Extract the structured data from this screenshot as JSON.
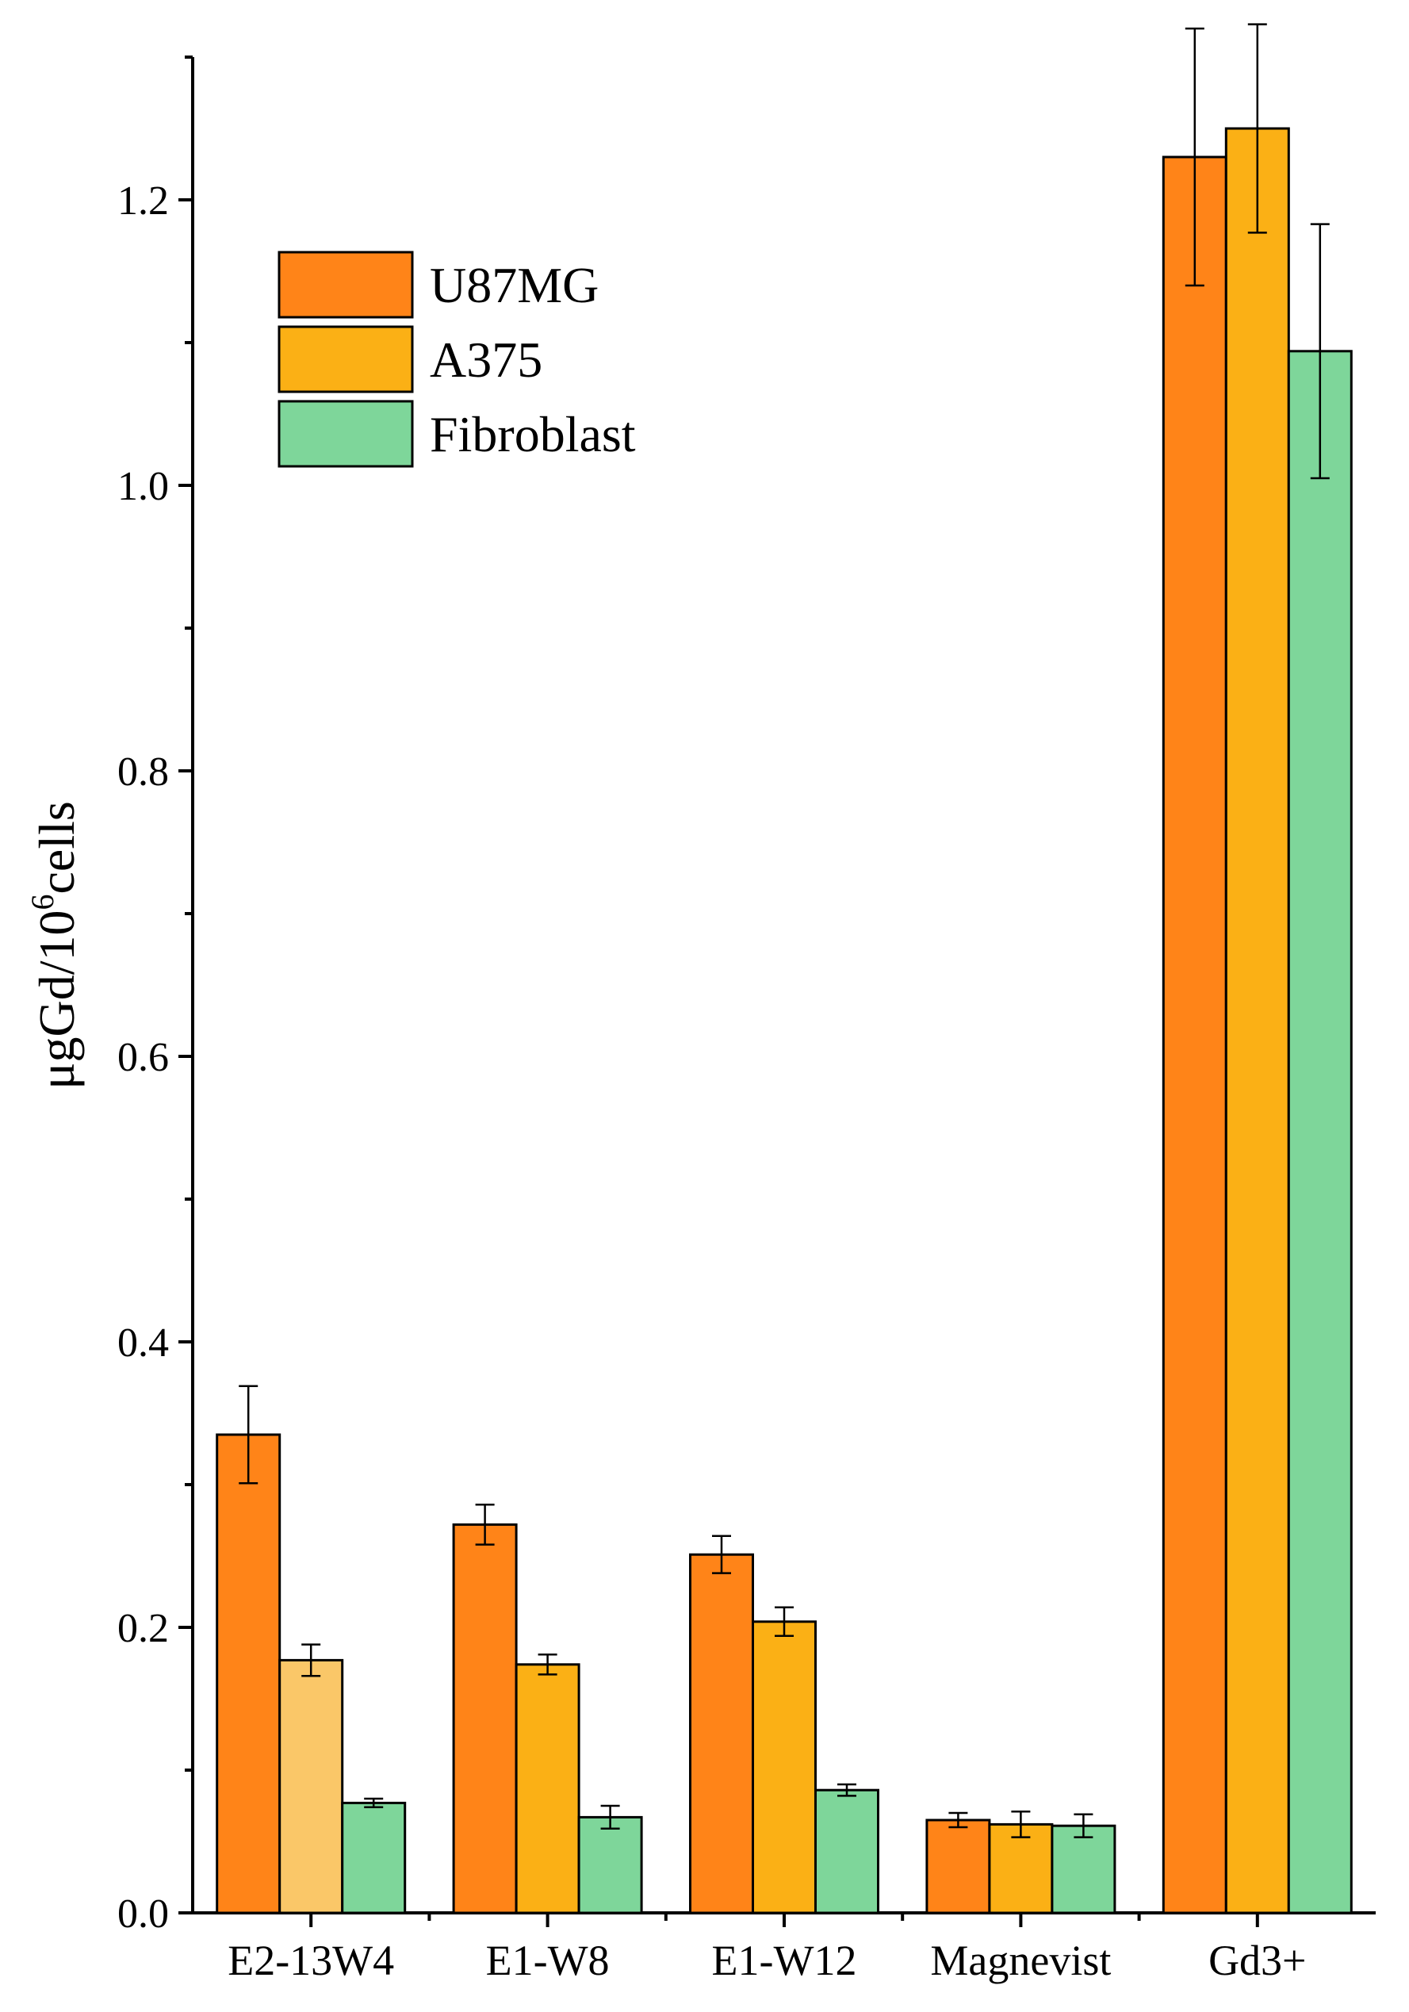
{
  "chart_data": {
    "type": "bar",
    "title": "",
    "xlabel": "",
    "ylabel": "μgGd/10⁶cells",
    "ylabel_base": "μgGd/10",
    "ylabel_sup": "6",
    "ylabel_tail": "cells",
    "ylim": [
      0,
      1.3
    ],
    "yticks": [
      "0.0",
      "0.2",
      "0.4",
      "0.6",
      "0.8",
      "1.0",
      "1.2"
    ],
    "ytick_values": [
      0.0,
      0.2,
      0.4,
      0.6,
      0.8,
      1.0,
      1.2
    ],
    "categories": [
      "E2-13W4",
      "E1-W8",
      "E1-W12",
      "Magnevist",
      "Gd3+"
    ],
    "legend_position": "top-left",
    "series": [
      {
        "name": "U87MG",
        "color": "#FF8418",
        "values": [
          0.335,
          0.272,
          0.251,
          0.065,
          1.23
        ],
        "errors": [
          0.034,
          0.014,
          0.013,
          0.005,
          0.09
        ]
      },
      {
        "name": "A375",
        "color": "#FBB015",
        "values": [
          0.177,
          0.174,
          0.204,
          0.062,
          1.25
        ],
        "errors": [
          0.011,
          0.007,
          0.01,
          0.009,
          0.073
        ]
      },
      {
        "name": "Fibroblast",
        "color": "#7ED69A",
        "values": [
          0.077,
          0.067,
          0.086,
          0.061,
          1.094
        ],
        "errors": [
          0.003,
          0.008,
          0.004,
          0.008,
          0.089
        ]
      }
    ],
    "highlight": {
      "series": 1,
      "category": 0,
      "color": "#FAC768"
    }
  }
}
